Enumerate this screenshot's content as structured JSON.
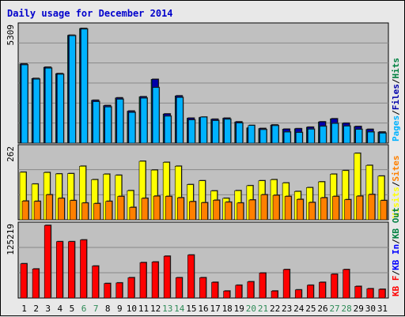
{
  "title": "Daily usage for December 2014",
  "colors": {
    "title": "#0000cc",
    "panel_bg": "#c0c0c0",
    "hits": "#008040",
    "files": "#0000aa",
    "pages": "#00b2ff",
    "visits": "#ffff00",
    "sites": "#ff8000",
    "kbin": "#0000ff",
    "kbout": "#008040",
    "kbf": "#ff0000",
    "weekend": "#2e8b57",
    "weekday": "#000000"
  },
  "chart_data": [
    {
      "type": "bar",
      "panel": "hits_files_pages",
      "ymax_label": "5309",
      "ymax": 5309,
      "legend": [
        "Pages",
        "/",
        "Files",
        "/",
        "Hits"
      ],
      "series": [
        {
          "name": "Hits",
          "values": [
            3590,
            2930,
            3440,
            3150,
            4890,
            5200,
            1940,
            1700,
            2050,
            1450,
            2100,
            2890,
            1320,
            2140,
            1130,
            1160,
            1080,
            1130,
            960,
            690,
            660,
            820,
            630,
            650,
            720,
            960,
            1100,
            900,
            750,
            620,
            500
          ]
        },
        {
          "name": "Files",
          "values": [
            3590,
            2930,
            3440,
            3150,
            4890,
            5200,
            1940,
            1700,
            2050,
            1450,
            2100,
            2890,
            1320,
            2140,
            1130,
            1160,
            1080,
            1130,
            960,
            690,
            660,
            820,
            630,
            650,
            720,
            960,
            1100,
            900,
            750,
            620,
            500
          ]
        },
        {
          "name": "Pages",
          "values": [
            3550,
            2900,
            3400,
            3120,
            4870,
            5170,
            1880,
            1640,
            1990,
            1390,
            2040,
            2520,
            1220,
            2070,
            1050,
            1180,
            1020,
            1080,
            910,
            800,
            610,
            790,
            500,
            480,
            630,
            760,
            890,
            770,
            620,
            500,
            450
          ]
        }
      ]
    },
    {
      "type": "bar",
      "panel": "visits_sites",
      "ymax_label": "262",
      "ymax": 262,
      "legend": [
        "Visits",
        "/",
        "Sites"
      ],
      "series": [
        {
          "name": "Visits",
          "values": [
            173,
            130,
            172,
            167,
            168,
            195,
            146,
            166,
            162,
            106,
            213,
            181,
            209,
            195,
            128,
            142,
            105,
            78,
            106,
            124,
            142,
            146,
            134,
            103,
            117,
            138,
            166,
            179,
            242,
            198,
            159
          ]
        },
        {
          "name": "Sites",
          "values": [
            68,
            67,
            91,
            78,
            70,
            61,
            59,
            67,
            85,
            45,
            78,
            86,
            85,
            80,
            66,
            62,
            71,
            64,
            61,
            72,
            91,
            89,
            85,
            74,
            63,
            80,
            85,
            73,
            86,
            92,
            70
          ]
        }
      ]
    },
    {
      "type": "bar",
      "panel": "kbf_kbin_kbout",
      "ymax_label": "125219",
      "ymax": 125219,
      "legend": [
        "KB F",
        "/",
        "KB In",
        "/",
        "KB Out"
      ],
      "series": [
        {
          "name": "KB F",
          "values": [
            59000,
            50000,
            125000,
            97000,
            97000,
            100000,
            55000,
            25000,
            26000,
            35000,
            61000,
            62000,
            72000,
            35000,
            74000,
            35000,
            27000,
            12000,
            22000,
            28000,
            43000,
            12000,
            49000,
            14000,
            22000,
            27000,
            41000,
            49000,
            20000,
            16000,
            15000
          ]
        }
      ]
    }
  ],
  "xaxis": {
    "labels": [
      "1",
      "2",
      "3",
      "4",
      "5",
      "6",
      "7",
      "8",
      "9",
      "10",
      "11",
      "12",
      "13",
      "14",
      "15",
      "16",
      "17",
      "18",
      "19",
      "20",
      "21",
      "22",
      "23",
      "24",
      "25",
      "26",
      "27",
      "28",
      "29",
      "30",
      "31"
    ],
    "weekend_days": [
      6,
      7,
      13,
      14,
      20,
      21,
      27,
      28
    ]
  }
}
